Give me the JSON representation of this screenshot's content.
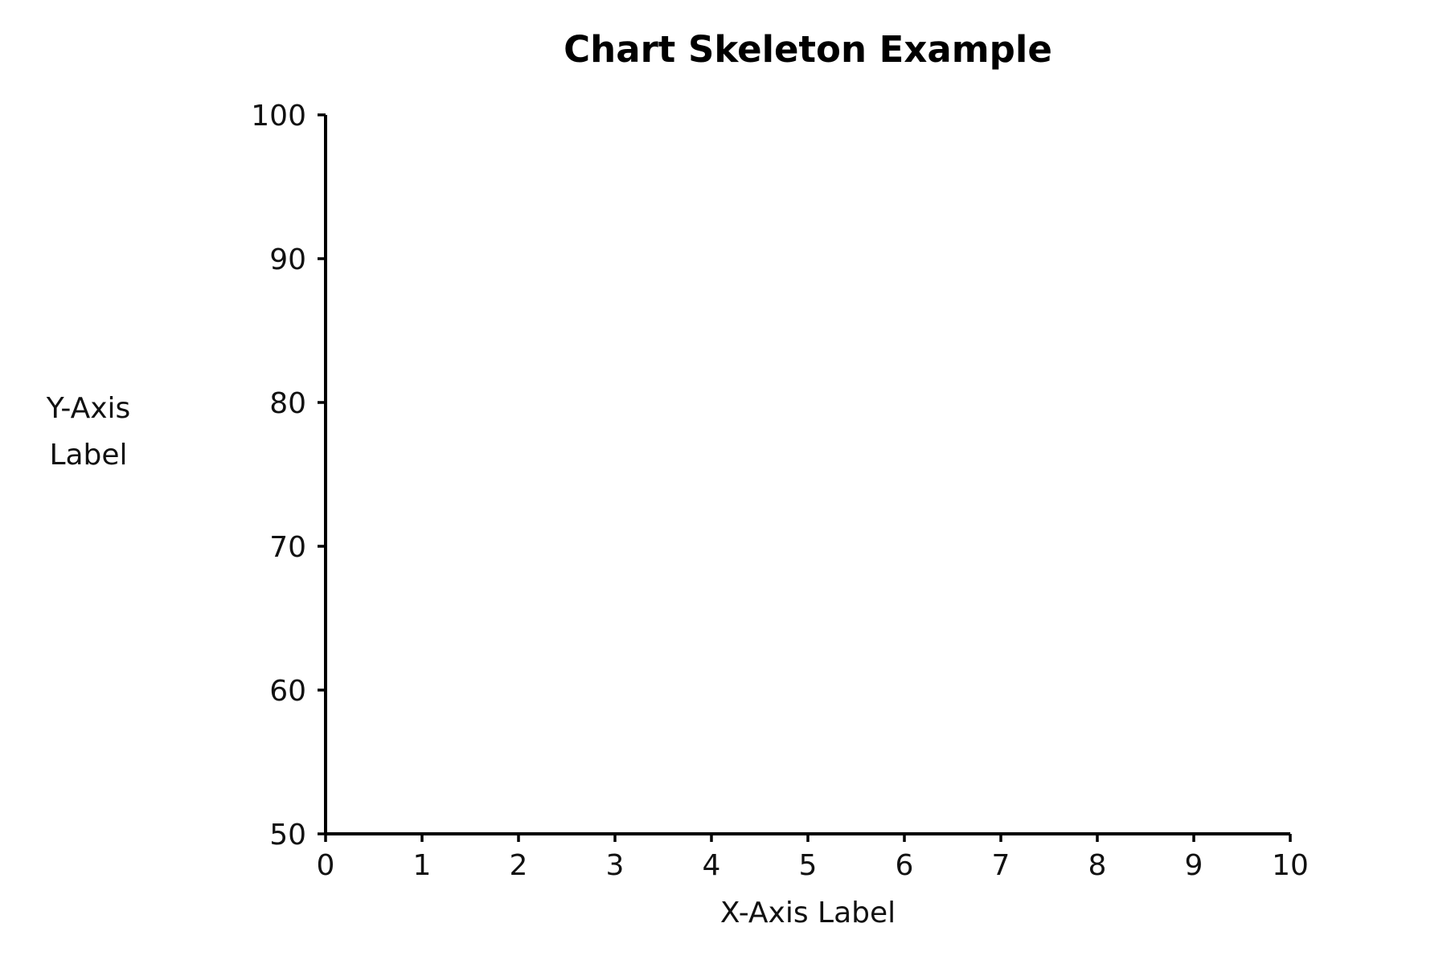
{
  "chart_data": {
    "type": "line",
    "title": "Chart Skeleton Example",
    "xlabel": "X-Axis Label",
    "ylabel": [
      "Y-Axis",
      "Label"
    ],
    "xlim": [
      0,
      10
    ],
    "ylim": [
      50,
      100
    ],
    "x_ticks": [
      0,
      1,
      2,
      3,
      4,
      5,
      6,
      7,
      8,
      9,
      10
    ],
    "y_ticks": [
      50,
      60,
      70,
      80,
      90,
      100
    ],
    "grid": false,
    "series": []
  }
}
